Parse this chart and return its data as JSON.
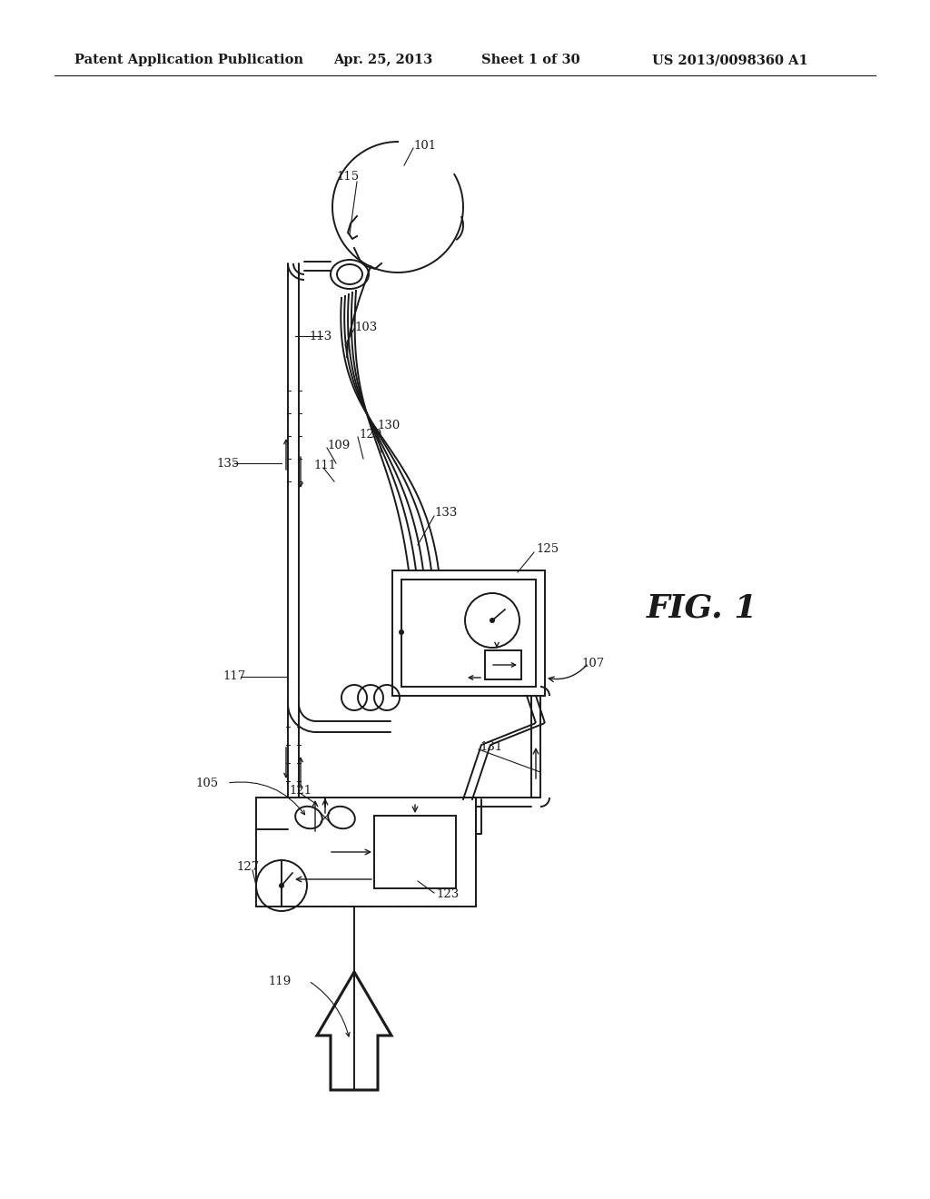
{
  "title": "Patent Application Publication",
  "date": "Apr. 25, 2013",
  "sheet": "Sheet 1 of 30",
  "patent_num": "US 2013/0098360 A1",
  "fig_label": "FIG. 1",
  "bg_color": "#ffffff",
  "line_color": "#1a1a1a",
  "header_fontsize": 10.5,
  "fig_label_fontsize": 26
}
